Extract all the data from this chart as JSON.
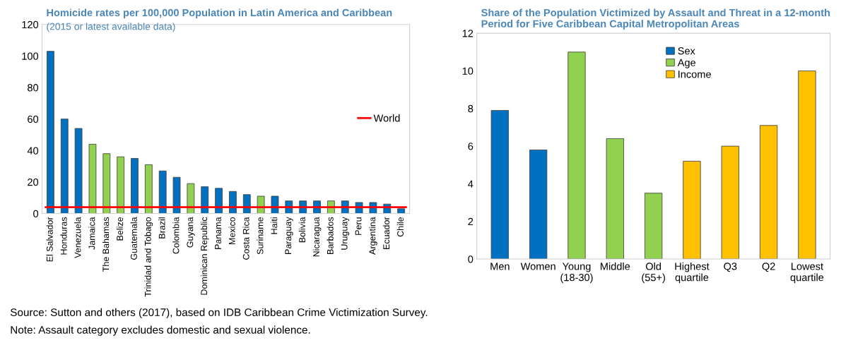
{
  "chart_data": [
    {
      "type": "bar",
      "title": "Homicide rates per 100,000 Population in Latin America and Caribbean",
      "subtitle": "(2015 or latest available data)",
      "categories": [
        "El Salvador",
        "Honduras",
        "Venezuela",
        "Jamaica",
        "The Bahamas",
        "Belize",
        "Guatemala",
        "Trinidad and Tobago",
        "Brazil",
        "Colombia",
        "Guyana",
        "Dominican Republic",
        "Panama",
        "Mexico",
        "Costa Rica",
        "Suriname",
        "Haiti",
        "Paraguay",
        "Bolivia",
        "Nicaragua",
        "Barbados",
        "Uruguay",
        "Peru",
        "Argentina",
        "Ecuador",
        "Chile"
      ],
      "values": [
        103,
        60,
        54,
        44,
        38,
        36,
        35,
        31,
        27,
        23,
        19,
        17,
        16,
        14,
        12,
        11,
        11,
        8,
        8,
        8,
        8,
        8,
        7,
        7,
        6,
        3
      ],
      "colors": [
        "#0070c0",
        "#0070c0",
        "#0070c0",
        "#92d050",
        "#92d050",
        "#92d050",
        "#0070c0",
        "#92d050",
        "#0070c0",
        "#0070c0",
        "#92d050",
        "#0070c0",
        "#0070c0",
        "#0070c0",
        "#0070c0",
        "#92d050",
        "#0070c0",
        "#0070c0",
        "#0070c0",
        "#0070c0",
        "#92d050",
        "#0070c0",
        "#0070c0",
        "#0070c0",
        "#0070c0",
        "#0070c0"
      ],
      "ylim": [
        0,
        120
      ],
      "yticks": [
        0,
        20,
        40,
        60,
        80,
        100,
        120
      ],
      "ref_lines": [
        {
          "axis": "y",
          "value": 4,
          "label": "World",
          "color": "#ff0000"
        }
      ],
      "legend": "center right",
      "grid": false
    },
    {
      "type": "bar",
      "title": "Share of the Population Victimized by Assault and Threat in a 12-month Period for Five Caribbean Capital Metropolitan Areas",
      "categories": [
        "Men",
        "Women",
        "Young\n(18-30)",
        "Middle",
        "Old\n(55+)",
        "Highest\nquartile",
        "Q3",
        "Q2",
        "Lowest\nquartile"
      ],
      "series": [
        {
          "name": "Sex",
          "color": "#0070c0",
          "values": [
            7.9,
            5.8,
            null,
            null,
            null,
            null,
            null,
            null,
            null
          ]
        },
        {
          "name": "Age",
          "color": "#92d050",
          "values": [
            null,
            null,
            11,
            6.4,
            3.5,
            null,
            null,
            null,
            null
          ]
        },
        {
          "name": "Income",
          "color": "#ffc000",
          "values": [
            null,
            null,
            null,
            null,
            null,
            5.2,
            6,
            7.1,
            10
          ]
        }
      ],
      "ylim": [
        0,
        12
      ],
      "yticks": [
        0,
        2,
        4,
        6,
        8,
        10,
        12
      ],
      "legend": "top",
      "grid": false,
      "annotations": [
        "Source: Sutton and others (2017), based on IDB Caribbean Crime Victimization Survey.",
        "Note: Assault category excludes domestic and sexual violence."
      ]
    }
  ]
}
